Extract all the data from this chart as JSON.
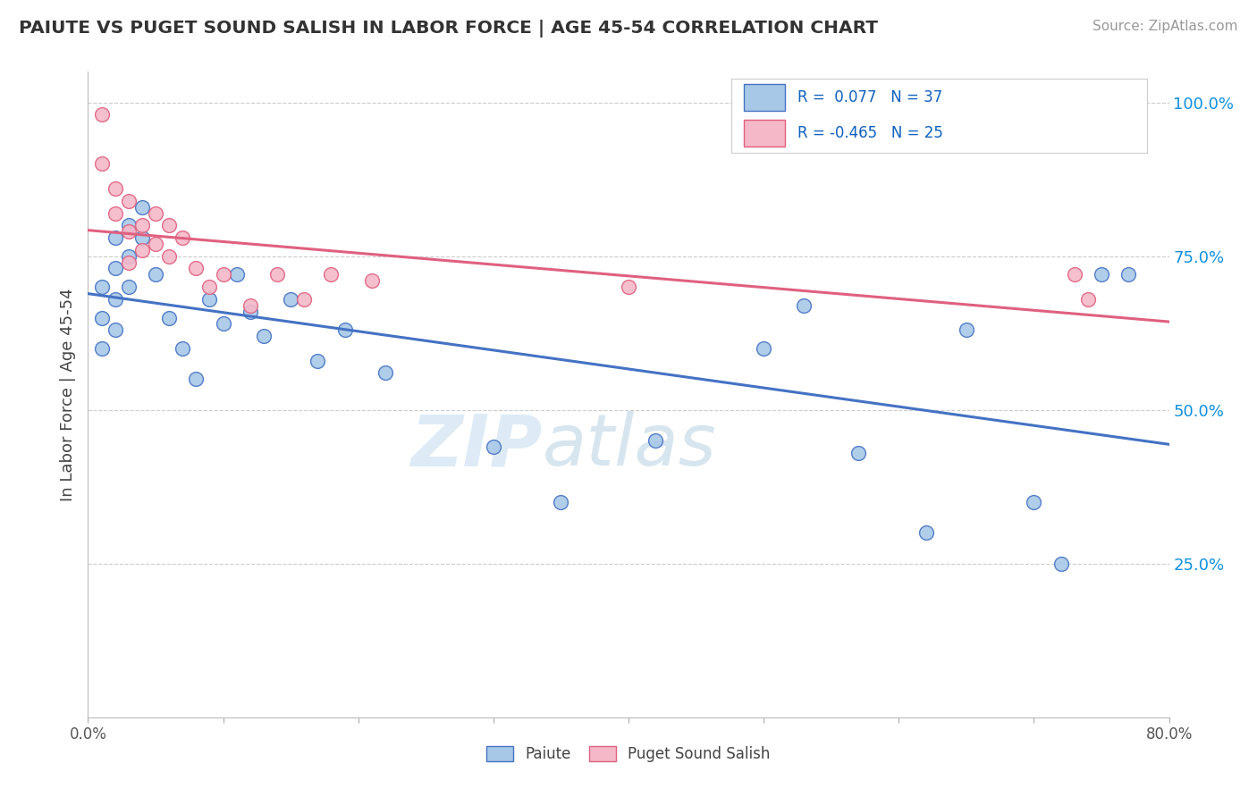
{
  "title": "PAIUTE VS PUGET SOUND SALISH IN LABOR FORCE | AGE 45-54 CORRELATION CHART",
  "source": "Source: ZipAtlas.com",
  "ylabel": "In Labor Force | Age 45-54",
  "xlim": [
    0.0,
    0.8
  ],
  "ylim": [
    0.0,
    1.05
  ],
  "xtick_pos": [
    0.0,
    0.1,
    0.2,
    0.3,
    0.4,
    0.5,
    0.6,
    0.7,
    0.8
  ],
  "xticklabels": [
    "0.0%",
    "",
    "",
    "",
    "",
    "",
    "",
    "",
    "80.0%"
  ],
  "ytick_positions": [
    0.25,
    0.5,
    0.75,
    1.0
  ],
  "ytick_labels": [
    "25.0%",
    "50.0%",
    "75.0%",
    "100.0%"
  ],
  "paiute_r": 0.077,
  "paiute_n": 37,
  "salish_r": -0.465,
  "salish_n": 25,
  "paiute_color": "#a8c8e8",
  "salish_color": "#f4b8c8",
  "paiute_edge_color": "#4472c4",
  "salish_edge_color": "#e06080",
  "paiute_line_color": "#4472c4",
  "salish_line_color": "#e06080",
  "legend_r_color": "#1060c0",
  "paiute_x": [
    0.01,
    0.01,
    0.01,
    0.02,
    0.02,
    0.02,
    0.02,
    0.03,
    0.03,
    0.03,
    0.04,
    0.04,
    0.05,
    0.06,
    0.07,
    0.08,
    0.09,
    0.1,
    0.11,
    0.12,
    0.13,
    0.15,
    0.17,
    0.19,
    0.22,
    0.3,
    0.35,
    0.42,
    0.5,
    0.53,
    0.57,
    0.62,
    0.65,
    0.7,
    0.72,
    0.75,
    0.77
  ],
  "paiute_y": [
    0.7,
    0.65,
    0.6,
    0.78,
    0.73,
    0.68,
    0.63,
    0.8,
    0.75,
    0.7,
    0.83,
    0.78,
    0.72,
    0.65,
    0.6,
    0.55,
    0.68,
    0.64,
    0.72,
    0.66,
    0.62,
    0.68,
    0.58,
    0.63,
    0.56,
    0.44,
    0.35,
    0.45,
    0.6,
    0.67,
    0.43,
    0.3,
    0.63,
    0.35,
    0.25,
    0.72,
    0.72
  ],
  "salish_x": [
    0.01,
    0.01,
    0.02,
    0.02,
    0.03,
    0.03,
    0.03,
    0.04,
    0.04,
    0.05,
    0.05,
    0.06,
    0.06,
    0.07,
    0.08,
    0.09,
    0.1,
    0.12,
    0.14,
    0.16,
    0.18,
    0.21,
    0.4,
    0.73,
    0.74
  ],
  "salish_y": [
    0.98,
    0.9,
    0.86,
    0.82,
    0.84,
    0.79,
    0.74,
    0.8,
    0.76,
    0.82,
    0.77,
    0.8,
    0.75,
    0.78,
    0.73,
    0.7,
    0.72,
    0.67,
    0.72,
    0.68,
    0.72,
    0.71,
    0.7,
    0.72,
    0.68
  ],
  "watermark_zip": "ZIP",
  "watermark_atlas": "atlas",
  "background_color": "#ffffff",
  "grid_color": "#cccccc"
}
